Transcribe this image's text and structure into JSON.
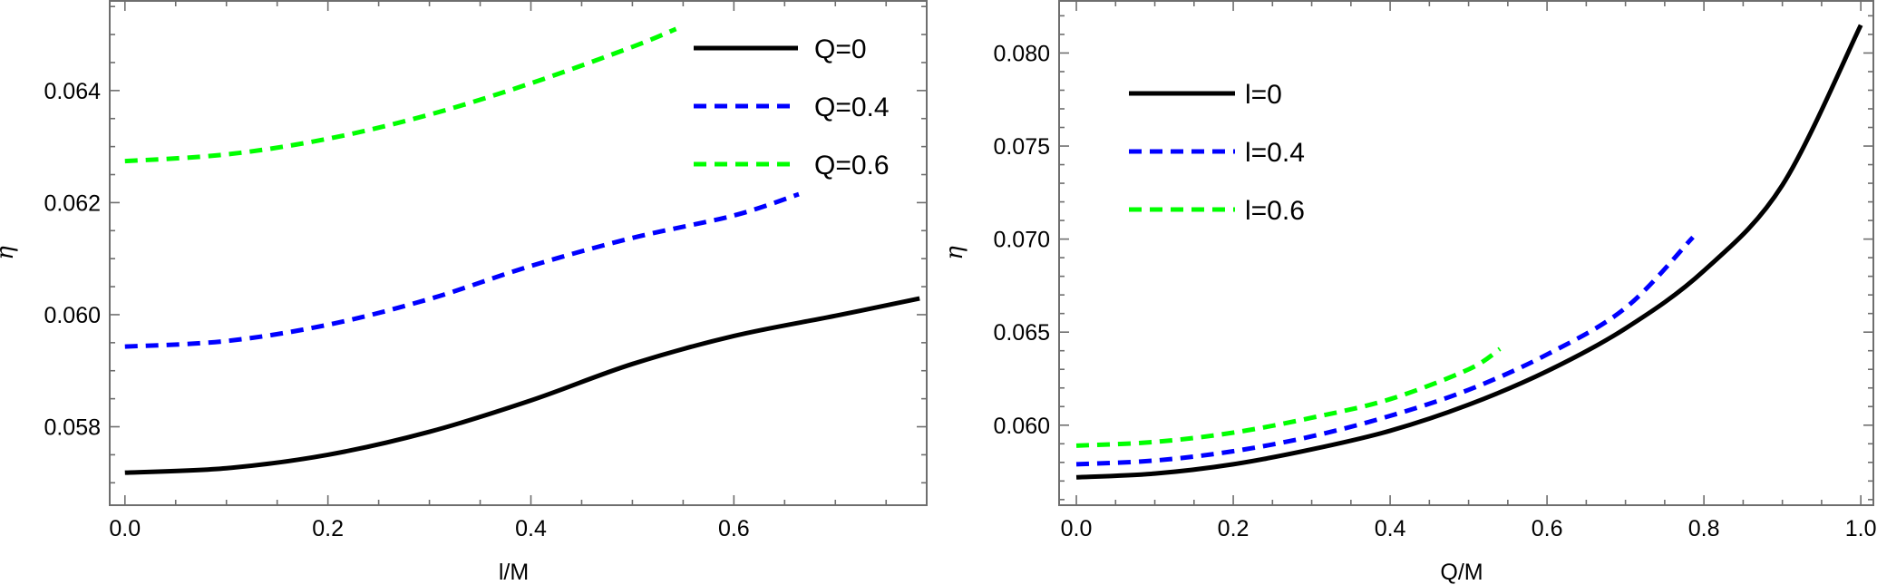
{
  "chart_data": [
    {
      "type": "line",
      "title": "",
      "xlabel": "l/M",
      "ylabel": "η",
      "xlim": [
        -0.015,
        0.79
      ],
      "ylim": [
        0.0566,
        0.0656
      ],
      "xticks": [
        0.0,
        0.2,
        0.4,
        0.6
      ],
      "xtick_labels": [
        "0.0",
        "0.2",
        "0.4",
        "0.6"
      ],
      "yticks": [
        0.058,
        0.06,
        0.062,
        0.064
      ],
      "ytick_labels": [
        "0.058",
        "0.060",
        "0.062",
        "0.064"
      ],
      "grid": false,
      "legend_position": "top-right",
      "series": [
        {
          "name": "Q=0",
          "color": "#000000",
          "style": "solid",
          "x": [
            0.0,
            0.1,
            0.2,
            0.3,
            0.4,
            0.5,
            0.6,
            0.7,
            0.783
          ],
          "y": [
            0.05718,
            0.05726,
            0.0575,
            0.05791,
            0.05847,
            0.05912,
            0.05962,
            0.05998,
            0.06029
          ]
        },
        {
          "name": "Q=0.4",
          "color": "#0000ff",
          "style": "dashed",
          "x": [
            0.0,
            0.1,
            0.2,
            0.3,
            0.4,
            0.5,
            0.6,
            0.664
          ],
          "y": [
            0.05943,
            0.05953,
            0.05982,
            0.06028,
            0.06087,
            0.06137,
            0.06177,
            0.06215
          ]
        },
        {
          "name": "Q=0.6",
          "color": "#00ff00",
          "style": "dashed",
          "x": [
            0.0,
            0.1,
            0.2,
            0.3,
            0.4,
            0.5,
            0.543
          ],
          "y": [
            0.06274,
            0.06286,
            0.06314,
            0.06357,
            0.06413,
            0.06478,
            0.0651
          ]
        }
      ]
    },
    {
      "type": "line",
      "title": "",
      "xlabel": "Q/M",
      "ylabel": "η",
      "xlim": [
        -0.022,
        1.016
      ],
      "ylim": [
        0.0557,
        0.0828
      ],
      "xticks": [
        0.0,
        0.2,
        0.4,
        0.6,
        0.8,
        1.0
      ],
      "xtick_labels": [
        "0.0",
        "0.2",
        "0.4",
        "0.6",
        "0.8",
        "1.0"
      ],
      "yticks": [
        0.06,
        0.065,
        0.07,
        0.075,
        0.08
      ],
      "ytick_labels": [
        "0.060",
        "0.065",
        "0.070",
        "0.075",
        "0.080"
      ],
      "grid": false,
      "legend_position": "top-left",
      "series": [
        {
          "name": "l=0",
          "color": "#000000",
          "style": "solid",
          "x": [
            0.0,
            0.1,
            0.2,
            0.3,
            0.4,
            0.5,
            0.6,
            0.7,
            0.8,
            0.9,
            1.0
          ],
          "y": [
            0.0572,
            0.0574,
            0.0579,
            0.0587,
            0.0597,
            0.0611,
            0.0629,
            0.0652,
            0.0683,
            0.0729,
            0.0815
          ]
        },
        {
          "name": "l=0.4",
          "color": "#0000ff",
          "style": "dashed",
          "x": [
            0.0,
            0.1,
            0.2,
            0.3,
            0.4,
            0.5,
            0.6,
            0.7,
            0.786
          ],
          "y": [
            0.0579,
            0.0581,
            0.0586,
            0.0594,
            0.0605,
            0.0619,
            0.0638,
            0.0663,
            0.0701
          ]
        },
        {
          "name": "l=0.6",
          "color": "#00ff00",
          "style": "dashed",
          "x": [
            0.0,
            0.1,
            0.2,
            0.3,
            0.4,
            0.5,
            0.54
          ],
          "y": [
            0.0589,
            0.0591,
            0.0596,
            0.0604,
            0.0614,
            0.063,
            0.0641
          ]
        }
      ]
    }
  ]
}
